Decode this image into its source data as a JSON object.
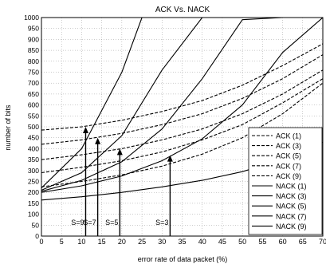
{
  "chart_data": {
    "type": "line",
    "title": "ACK Vs. NACK",
    "xlabel": "error rate of data packet (%)",
    "ylabel": "number of bits",
    "xlim": [
      0,
      70
    ],
    "ylim": [
      0,
      1000
    ],
    "xticks": [
      0,
      5,
      10,
      15,
      20,
      25,
      30,
      35,
      40,
      45,
      50,
      55,
      60,
      65,
      70
    ],
    "yticks": [
      0,
      50,
      100,
      150,
      200,
      250,
      300,
      350,
      400,
      450,
      500,
      550,
      600,
      650,
      700,
      750,
      800,
      850,
      900,
      950,
      1000
    ],
    "grid": true,
    "legend_position": "bottom-right",
    "series": [
      {
        "name": "ACK (1)",
        "style": "dashed",
        "x": [
          0,
          10,
          20,
          30,
          40,
          50,
          60,
          70
        ],
        "y": [
          485,
          500,
          530,
          570,
          620,
          690,
          780,
          880
        ]
      },
      {
        "name": "ACK (3)",
        "style": "dashed",
        "x": [
          0,
          10,
          20,
          30,
          40,
          50,
          60,
          70
        ],
        "y": [
          420,
          440,
          470,
          510,
          560,
          630,
          720,
          830
        ]
      },
      {
        "name": "ACK (5)",
        "style": "dashed",
        "x": [
          0,
          10,
          20,
          30,
          40,
          50,
          60,
          70
        ],
        "y": [
          350,
          372,
          400,
          440,
          490,
          560,
          650,
          760
        ]
      },
      {
        "name": "ACK (7)",
        "style": "dashed",
        "x": [
          0,
          10,
          20,
          30,
          40,
          50,
          60,
          70
        ],
        "y": [
          290,
          315,
          345,
          385,
          440,
          510,
          610,
          720
        ]
      },
      {
        "name": "ACK (9)",
        "style": "dashed",
        "x": [
          0,
          10,
          20,
          30,
          40,
          50,
          60,
          70
        ],
        "y": [
          225,
          250,
          280,
          320,
          375,
          450,
          560,
          700
        ]
      },
      {
        "name": "NACK (1)",
        "style": "solid",
        "x": [
          0,
          10,
          20,
          30,
          40,
          50,
          60,
          70
        ],
        "y": [
          165,
          180,
          200,
          225,
          255,
          295,
          350,
          430
        ]
      },
      {
        "name": "NACK (3)",
        "style": "solid",
        "x": [
          0,
          10,
          20,
          30,
          40,
          50,
          60,
          70
        ],
        "y": [
          200,
          230,
          275,
          345,
          445,
          600,
          840,
          1000
        ]
      },
      {
        "name": "NACK (5)",
        "style": "solid",
        "x": [
          0,
          10,
          20,
          30,
          40,
          50,
          60
        ],
        "y": [
          205,
          255,
          340,
          490,
          720,
          990,
          1000
        ]
      },
      {
        "name": "NACK (7)",
        "style": "solid",
        "x": [
          0,
          10,
          20,
          30,
          40
        ],
        "y": [
          210,
          290,
          460,
          760,
          1000
        ]
      },
      {
        "name": "NACK (9)",
        "style": "solid",
        "x": [
          0,
          10,
          20,
          25,
          30
        ],
        "y": [
          220,
          400,
          750,
          1000,
          1000
        ]
      }
    ],
    "annotations": [
      {
        "label": "S=9",
        "x": 11,
        "y_top": 500
      },
      {
        "label": "S=7",
        "x": 14,
        "y_top": 450
      },
      {
        "label": "S=5",
        "x": 19.5,
        "y_top": 400
      },
      {
        "label": "S=3",
        "x": 32,
        "y_top": 370
      }
    ]
  }
}
